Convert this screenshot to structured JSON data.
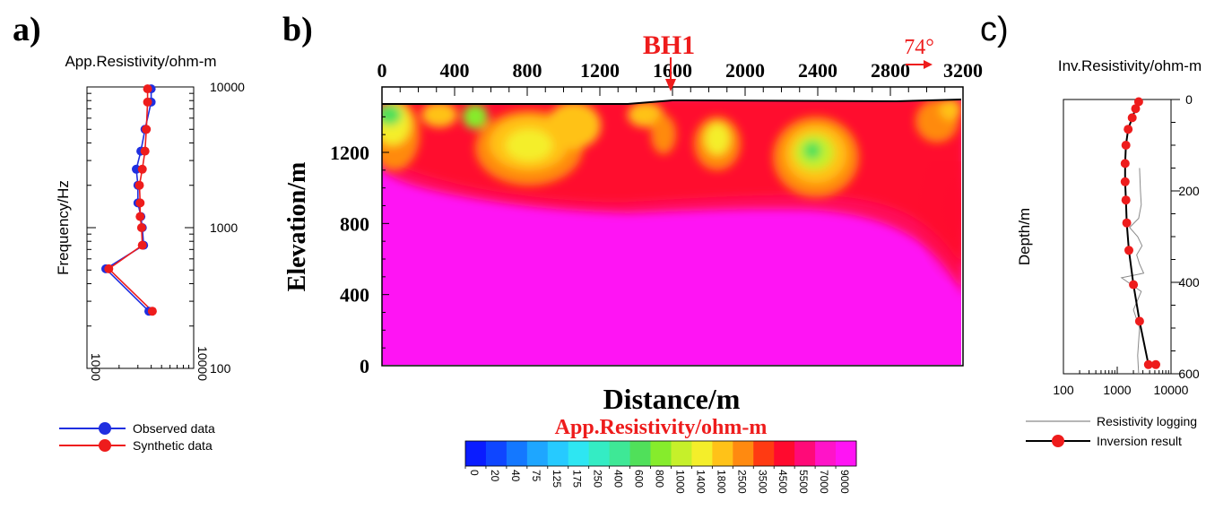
{
  "panels": {
    "a_label": "a)",
    "b_label": "b)",
    "c_label": "c)"
  },
  "colors": {
    "observed": "#1f2fe0",
    "synthetic": "#ee1c1c",
    "annotation_red": "#ee1c1c",
    "inversion": "#000000",
    "logging": "#8a8a8a"
  },
  "chart_data": [
    {
      "id": "panel-a",
      "type": "line",
      "title": "App.Resistivity/ohm-m",
      "xlabel": "",
      "ylabel": "Frequency/Hz",
      "x_scale": "log",
      "y_scale": "log",
      "xlim": [
        1000,
        10000
      ],
      "ylim": [
        100,
        10000
      ],
      "x_ticks": [
        "1000",
        "10000"
      ],
      "y_ticks": [
        "10000",
        "1000",
        "100"
      ],
      "legend": "bottom",
      "series": [
        {
          "name": "Observed data",
          "x": [
            4000,
            4000,
            3500,
            3200,
            2900,
            3000,
            3000,
            3200,
            3300,
            3400,
            1500,
            3800
          ],
          "y": [
            9700,
            7800,
            5000,
            3500,
            2600,
            2000,
            1500,
            1200,
            1000,
            750,
            510,
            255
          ]
        },
        {
          "name": "Synthetic data",
          "x": [
            3700,
            3700,
            3600,
            3500,
            3300,
            3100,
            3150,
            3150,
            3250,
            3300,
            1600,
            4100
          ],
          "y": [
            9700,
            7800,
            5000,
            3500,
            2600,
            2000,
            1500,
            1200,
            1000,
            750,
            510,
            255
          ]
        }
      ]
    },
    {
      "id": "panel-b",
      "type": "heatmap",
      "title": "",
      "xlabel": "Distance/m",
      "ylabel": "Elevation/m",
      "xlim": [
        0,
        3200
      ],
      "ylim": [
        0,
        1500
      ],
      "x_ticks": [
        "0",
        "400",
        "800",
        "1200",
        "1600",
        "2000",
        "2400",
        "2800",
        "3200"
      ],
      "y_ticks": [
        "0",
        "400",
        "800",
        "1200"
      ],
      "annotations": {
        "borehole": "BH1",
        "borehole_x": 1600,
        "strike": "74°"
      },
      "colorbar": {
        "title": "App.Resistivity/ohm-m",
        "levels": [
          "0",
          "20",
          "40",
          "75",
          "125",
          "175",
          "250",
          "400",
          "600",
          "800",
          "1000",
          "1400",
          "1800",
          "2500",
          "3500",
          "4500",
          "5500",
          "7000",
          "9000"
        ],
        "colors": [
          "#0a1cff",
          "#0f46ff",
          "#1478ff",
          "#1ea6ff",
          "#26caff",
          "#2ee6f2",
          "#34ecc4",
          "#3ee896",
          "#50e05a",
          "#86ec2c",
          "#c6f02a",
          "#f4ee2a",
          "#ffc218",
          "#ff8a10",
          "#ff3a12",
          "#ff0a2e",
          "#ff0a78",
          "#ff14c8",
          "#ff14f4"
        ]
      }
    },
    {
      "id": "panel-c",
      "type": "line",
      "title": "Inv.Resistivity/ohm-m",
      "xlabel": "",
      "ylabel": "Depth/m",
      "x_scale": "log",
      "xlim": [
        100,
        10000
      ],
      "ylim": [
        600,
        0
      ],
      "x_ticks": [
        "100",
        "1000",
        "10000"
      ],
      "y_ticks": [
        "0",
        "200",
        "400",
        "600"
      ],
      "legend": "bottom",
      "series": [
        {
          "name": "Inversion result",
          "x": [
            2500,
            2200,
            1900,
            1600,
            1450,
            1400,
            1400,
            1450,
            1500,
            1650,
            2000,
            2600,
            3800,
            5200
          ],
          "y": [
            5,
            20,
            40,
            65,
            100,
            140,
            180,
            220,
            270,
            330,
            405,
            485,
            580,
            580
          ]
        },
        {
          "name": "Resistivity logging",
          "x": [
            2600,
            2700,
            2800,
            2500,
            1700,
            2400,
            2900,
            2300,
            2600,
            3100,
            1200,
            2800,
            2000,
            2600,
            2400,
            2500
          ],
          "y": [
            150,
            200,
            230,
            260,
            280,
            300,
            320,
            340,
            360,
            380,
            390,
            420,
            460,
            500,
            560,
            600
          ]
        }
      ]
    }
  ]
}
